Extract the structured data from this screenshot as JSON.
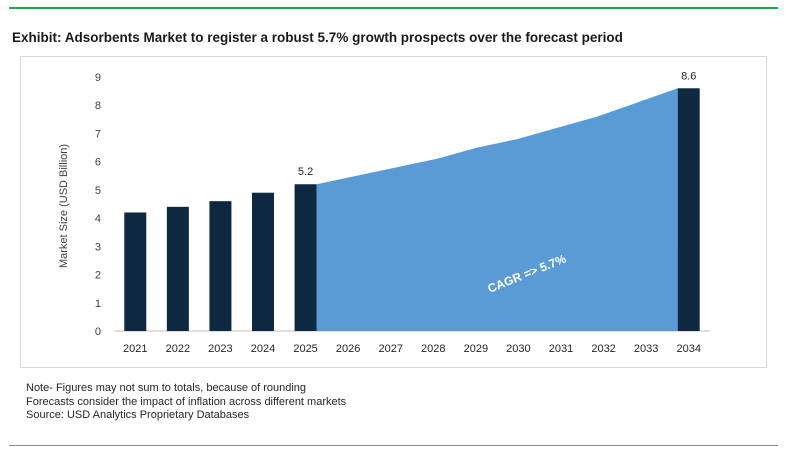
{
  "header": {
    "title": "Exhibit: Adsorbents Market to register a robust 5.7% growth prospects over the forecast period",
    "accent_color": "#1aa64a"
  },
  "chart_data": {
    "type": "bar",
    "categories": [
      "2021",
      "2022",
      "2023",
      "2024",
      "2025",
      "2026",
      "2027",
      "2028",
      "2029",
      "2030",
      "2031",
      "2032",
      "2033",
      "2034"
    ],
    "values": [
      4.2,
      4.4,
      4.6,
      4.9,
      5.2,
      null,
      null,
      null,
      null,
      null,
      null,
      null,
      null,
      8.6
    ],
    "data_labels": {
      "2025": "5.2",
      "2034": "8.6"
    },
    "area_forecast": {
      "x": [
        "2025",
        "2026",
        "2027",
        "2028",
        "2029",
        "2030",
        "2031",
        "2032",
        "2033",
        "2034"
      ],
      "values": [
        5.2,
        5.5,
        5.8,
        6.1,
        6.5,
        6.8,
        7.2,
        7.6,
        8.1,
        8.6
      ],
      "label": "CAGR => 5.7%"
    },
    "ylabel": "Market Size (USD Billion)",
    "xlabel": "",
    "ylim": [
      0,
      9
    ],
    "yticks": [
      "0",
      "1",
      "2",
      "3",
      "4",
      "5",
      "6",
      "7",
      "8",
      "9"
    ],
    "grid": false,
    "legend": "none",
    "colors": {
      "bar": "#0e2841",
      "area": "#5b9bd5",
      "area_label": "#ffffff"
    }
  },
  "notes": [
    "Note- Figures may not sum to totals, because of rounding",
    "Forecasts consider the impact of inflation across different markets",
    "Source: USD Analytics Proprietary Databases"
  ]
}
